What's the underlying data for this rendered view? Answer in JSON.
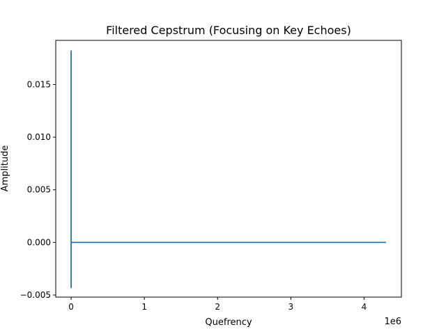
{
  "chart_data": {
    "type": "line",
    "title": "Filtered Cepstrum (Focusing on Key Echoes)",
    "xlabel": "Quefrency",
    "ylabel": "Amplitude",
    "x_offset_label": "1e6",
    "xlim": [
      -210000,
      4510000
    ],
    "ylim": [
      -0.0052,
      0.0192
    ],
    "xticks": [
      0,
      1000000,
      2000000,
      3000000,
      4000000
    ],
    "xtick_labels": [
      "0",
      "1",
      "2",
      "3",
      "4"
    ],
    "yticks": [
      -0.005,
      0.0,
      0.005,
      0.01,
      0.015
    ],
    "ytick_labels": [
      "−0.005",
      "0.000",
      "0.005",
      "0.010",
      "0.015"
    ],
    "grid": false,
    "series_color": "#1f77b4",
    "x": [
      0,
      0,
      0,
      0,
      12000,
      30000,
      4300000
    ],
    "y": [
      0.0,
      0.0182,
      -0.0043,
      0.0,
      0.0,
      0.0,
      0.0
    ]
  }
}
